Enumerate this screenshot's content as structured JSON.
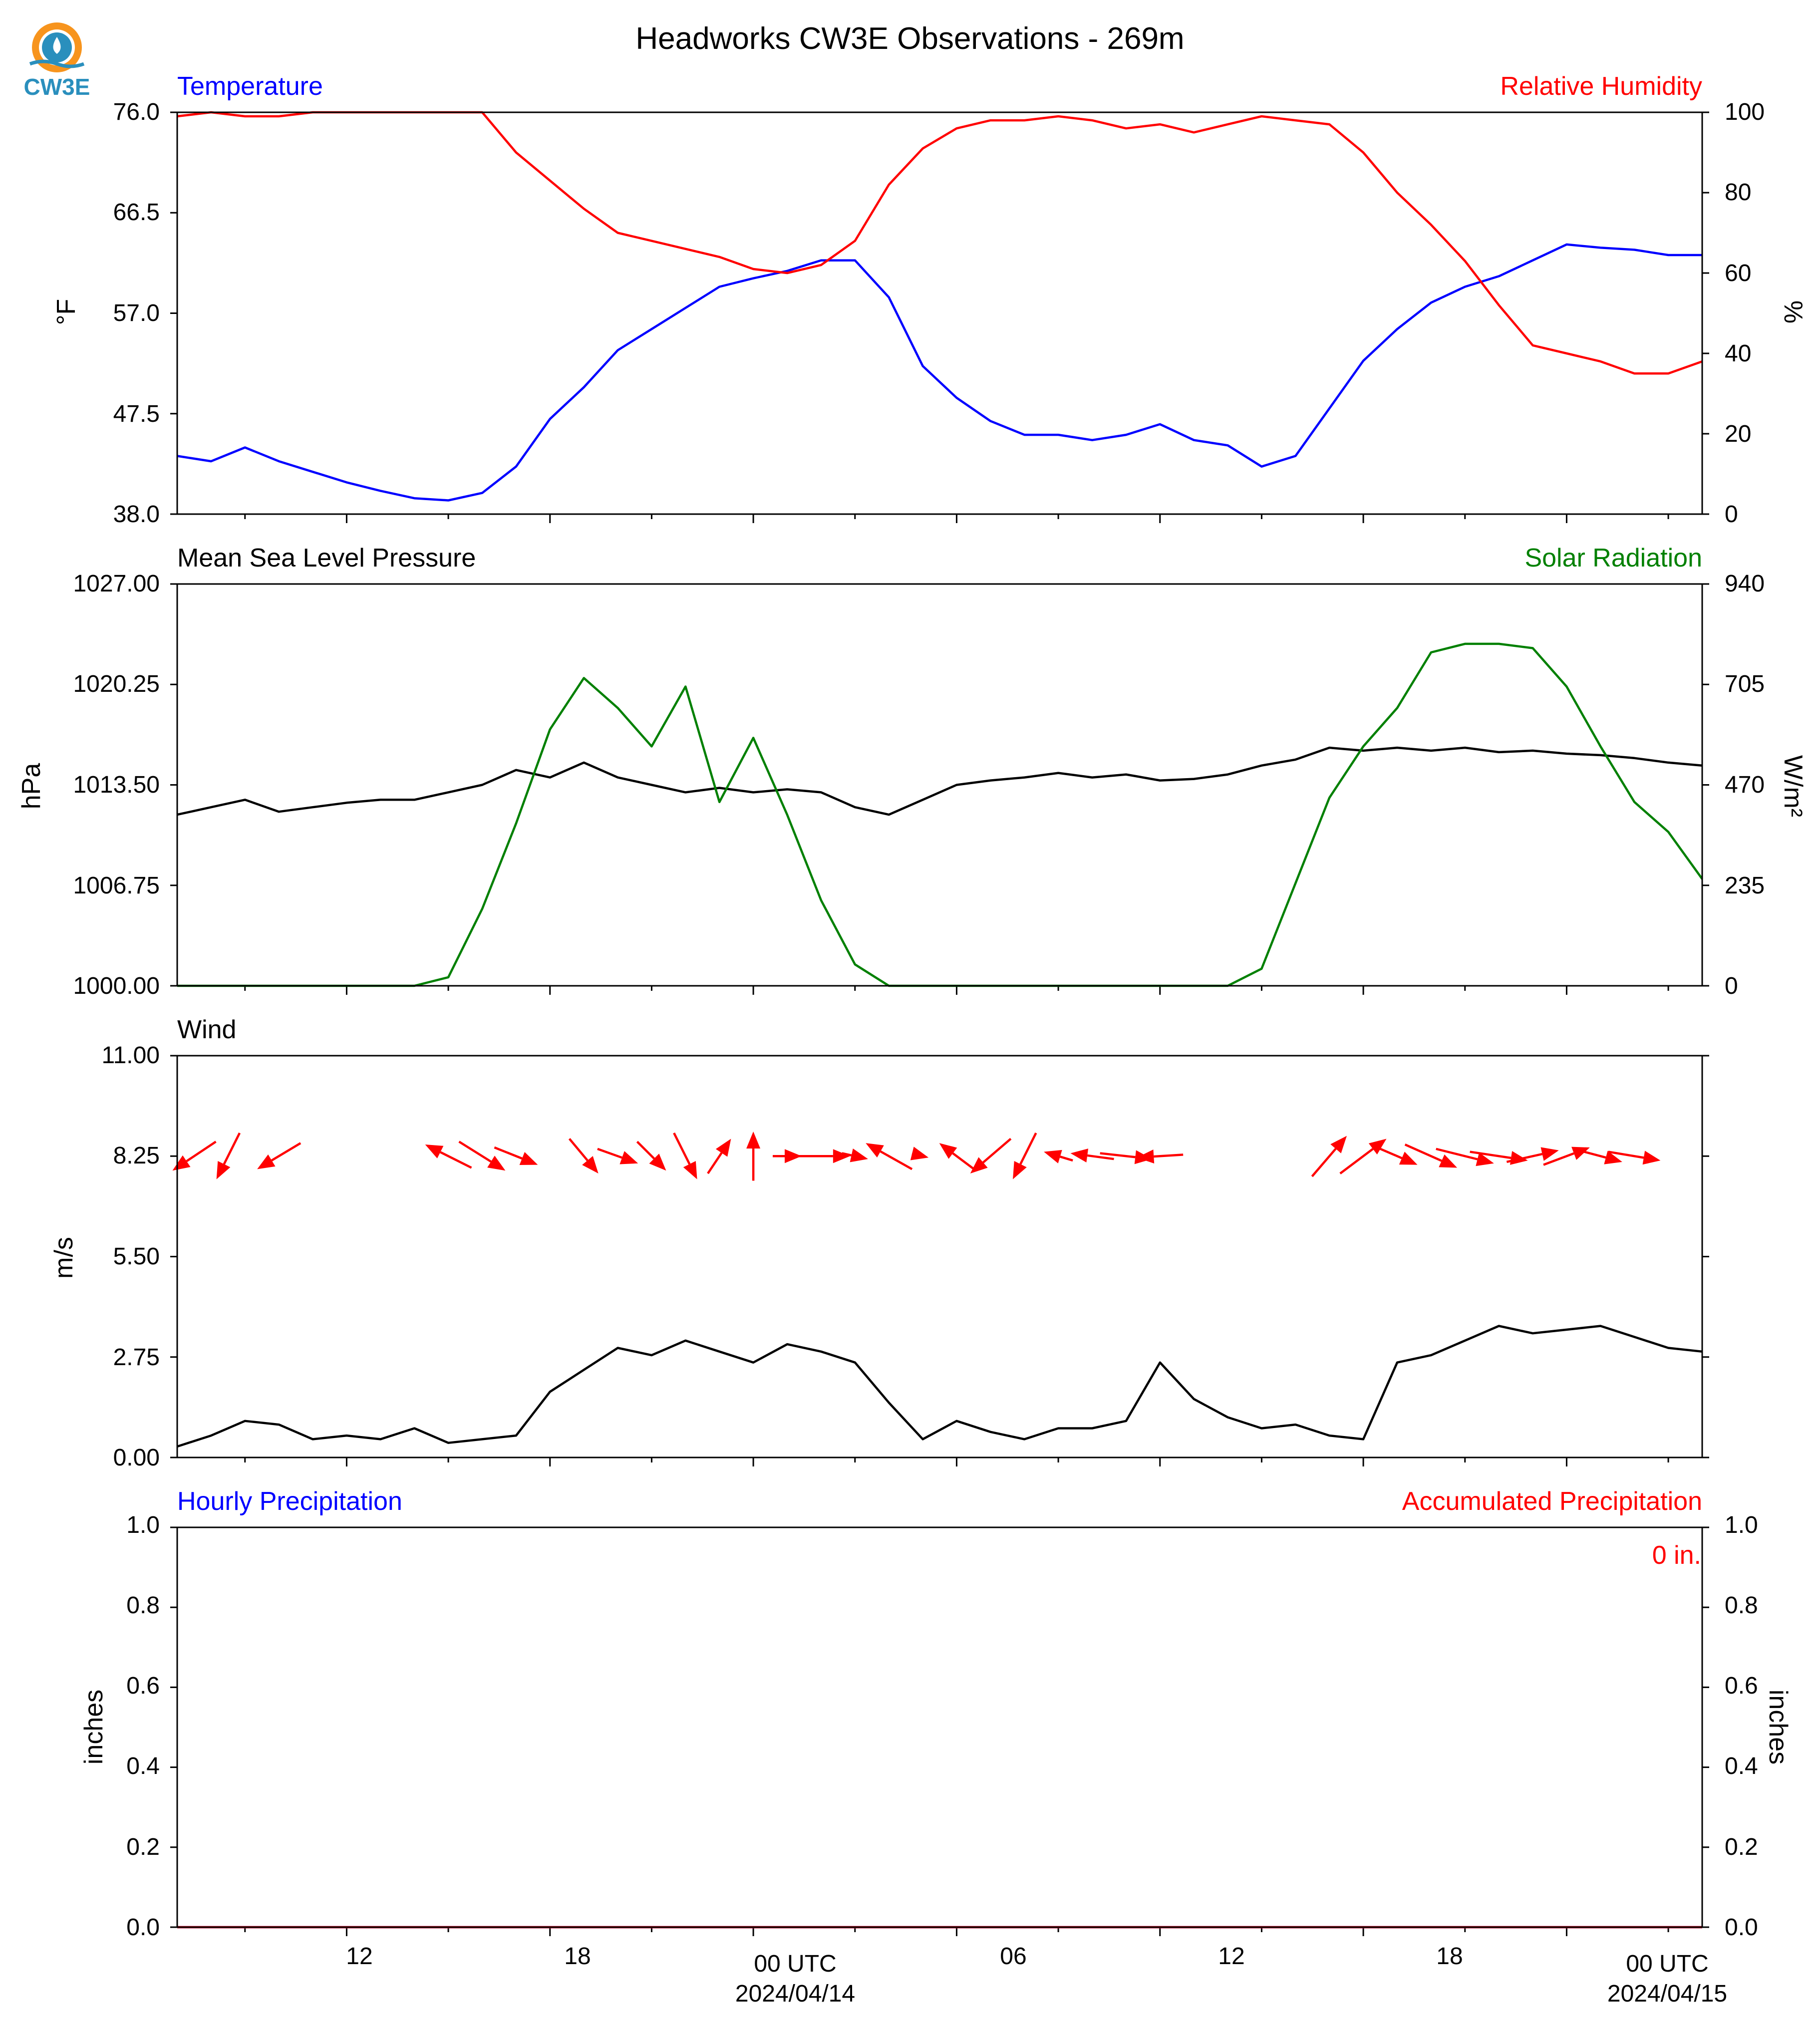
{
  "figure": {
    "title": "Headworks CW3E Observations - 269m",
    "logo_text": "CW3E",
    "time_axis": {
      "tick_labels": [
        "12",
        "18",
        "00 UTC",
        "06",
        "12",
        "18",
        "00 UTC"
      ],
      "date_labels": [
        "2024/04/14",
        "2024/04/15"
      ],
      "start": "2024-04-13T07:00Z",
      "end": "2024-04-15T04:00Z"
    }
  },
  "chart_data": [
    {
      "type": "line",
      "panel": "temperature-humidity",
      "title_left": "Temperature",
      "title_right": "Relative Humidity",
      "ylabel_left": "°F",
      "ylabel_right": "%",
      "ylim_left": [
        38.0,
        76.0
      ],
      "ylim_right": [
        0,
        100
      ],
      "yticks_left": [
        "38.0",
        "47.5",
        "57.0",
        "66.5",
        "76.0"
      ],
      "yticks_right": [
        "0",
        "20",
        "40",
        "60",
        "80",
        "100"
      ],
      "grid": false,
      "series": [
        {
          "axis": "left",
          "color": "#0000ff",
          "x": [
            "2024-04-13T07:00Z",
            "2024-04-13T08:00Z",
            "2024-04-13T09:00Z",
            "2024-04-13T10:00Z",
            "2024-04-13T11:00Z",
            "2024-04-13T12:00Z",
            "2024-04-13T13:00Z",
            "2024-04-13T14:00Z",
            "2024-04-13T15:00Z",
            "2024-04-13T16:00Z",
            "2024-04-13T17:00Z",
            "2024-04-13T18:00Z",
            "2024-04-13T19:00Z",
            "2024-04-13T20:00Z",
            "2024-04-13T21:00Z",
            "2024-04-13T22:00Z",
            "2024-04-13T23:00Z",
            "2024-04-14T00:00Z",
            "2024-04-14T01:00Z",
            "2024-04-14T02:00Z",
            "2024-04-14T03:00Z",
            "2024-04-14T04:00Z",
            "2024-04-14T05:00Z",
            "2024-04-14T06:00Z",
            "2024-04-14T07:00Z",
            "2024-04-14T08:00Z",
            "2024-04-14T09:00Z",
            "2024-04-14T10:00Z",
            "2024-04-14T11:00Z",
            "2024-04-14T12:00Z",
            "2024-04-14T13:00Z",
            "2024-04-14T14:00Z",
            "2024-04-14T15:00Z",
            "2024-04-14T16:00Z",
            "2024-04-14T17:00Z",
            "2024-04-14T18:00Z",
            "2024-04-14T19:00Z",
            "2024-04-14T20:00Z",
            "2024-04-14T21:00Z",
            "2024-04-14T22:00Z",
            "2024-04-14T23:00Z",
            "2024-04-15T00:00Z",
            "2024-04-15T01:00Z",
            "2024-04-15T02:00Z",
            "2024-04-15T03:00Z",
            "2024-04-15T04:00Z"
          ],
          "y": [
            43.5,
            43.0,
            44.3,
            43.0,
            42.0,
            41.0,
            40.2,
            39.5,
            39.3,
            40.0,
            42.5,
            47.0,
            50.0,
            53.5,
            55.5,
            57.5,
            59.5,
            60.3,
            61.0,
            62.0,
            62.0,
            58.5,
            52.0,
            49.0,
            46.8,
            45.5,
            45.5,
            45.0,
            45.5,
            46.5,
            45.0,
            44.5,
            42.5,
            43.5,
            48.0,
            52.5,
            55.5,
            58.0,
            59.5,
            60.5,
            62.0,
            63.5,
            63.2,
            63.0,
            62.5,
            62.5
          ]
        },
        {
          "axis": "right",
          "color": "#ff0000",
          "x": [
            "2024-04-13T07:00Z",
            "2024-04-13T08:00Z",
            "2024-04-13T09:00Z",
            "2024-04-13T10:00Z",
            "2024-04-13T11:00Z",
            "2024-04-13T12:00Z",
            "2024-04-13T13:00Z",
            "2024-04-13T14:00Z",
            "2024-04-13T15:00Z",
            "2024-04-13T16:00Z",
            "2024-04-13T17:00Z",
            "2024-04-13T18:00Z",
            "2024-04-13T19:00Z",
            "2024-04-13T20:00Z",
            "2024-04-13T21:00Z",
            "2024-04-13T22:00Z",
            "2024-04-13T23:00Z",
            "2024-04-14T00:00Z",
            "2024-04-14T01:00Z",
            "2024-04-14T02:00Z",
            "2024-04-14T03:00Z",
            "2024-04-14T04:00Z",
            "2024-04-14T05:00Z",
            "2024-04-14T06:00Z",
            "2024-04-14T07:00Z",
            "2024-04-14T08:00Z",
            "2024-04-14T09:00Z",
            "2024-04-14T10:00Z",
            "2024-04-14T11:00Z",
            "2024-04-14T12:00Z",
            "2024-04-14T13:00Z",
            "2024-04-14T14:00Z",
            "2024-04-14T15:00Z",
            "2024-04-14T16:00Z",
            "2024-04-14T17:00Z",
            "2024-04-14T18:00Z",
            "2024-04-14T19:00Z",
            "2024-04-14T20:00Z",
            "2024-04-14T21:00Z",
            "2024-04-14T22:00Z",
            "2024-04-14T23:00Z",
            "2024-04-15T00:00Z",
            "2024-04-15T01:00Z",
            "2024-04-15T02:00Z",
            "2024-04-15T03:00Z",
            "2024-04-15T04:00Z"
          ],
          "y": [
            99,
            100,
            99,
            99,
            100,
            100,
            100,
            100,
            100,
            100,
            90,
            83,
            76,
            70,
            68,
            66,
            64,
            61,
            60,
            62,
            68,
            82,
            91,
            96,
            98,
            98,
            99,
            98,
            96,
            97,
            95,
            97,
            99,
            98,
            97,
            90,
            80,
            72,
            63,
            52,
            42,
            40,
            38,
            35,
            35,
            38
          ]
        }
      ]
    },
    {
      "type": "line",
      "panel": "pressure-solar",
      "title_left": "Mean Sea Level Pressure",
      "title_right": "Solar Radiation",
      "ylabel_left": "hPa",
      "ylabel_right": "W/m²",
      "ylim_left": [
        1000.0,
        1027.0
      ],
      "ylim_right": [
        0,
        940
      ],
      "yticks_left": [
        "1000.00",
        "1006.75",
        "1013.50",
        "1020.25",
        "1027.00"
      ],
      "yticks_right": [
        "0",
        "235",
        "470",
        "705",
        "940"
      ],
      "grid": false,
      "series": [
        {
          "axis": "left",
          "color": "#000000",
          "x": [
            "2024-04-13T07:00Z",
            "2024-04-13T08:00Z",
            "2024-04-13T09:00Z",
            "2024-04-13T10:00Z",
            "2024-04-13T11:00Z",
            "2024-04-13T12:00Z",
            "2024-04-13T13:00Z",
            "2024-04-13T14:00Z",
            "2024-04-13T15:00Z",
            "2024-04-13T16:00Z",
            "2024-04-13T17:00Z",
            "2024-04-13T18:00Z",
            "2024-04-13T19:00Z",
            "2024-04-13T20:00Z",
            "2024-04-13T21:00Z",
            "2024-04-13T22:00Z",
            "2024-04-13T23:00Z",
            "2024-04-14T00:00Z",
            "2024-04-14T01:00Z",
            "2024-04-14T02:00Z",
            "2024-04-14T03:00Z",
            "2024-04-14T04:00Z",
            "2024-04-14T05:00Z",
            "2024-04-14T06:00Z",
            "2024-04-14T07:00Z",
            "2024-04-14T08:00Z",
            "2024-04-14T09:00Z",
            "2024-04-14T10:00Z",
            "2024-04-14T11:00Z",
            "2024-04-14T12:00Z",
            "2024-04-14T13:00Z",
            "2024-04-14T14:00Z",
            "2024-04-14T15:00Z",
            "2024-04-14T16:00Z",
            "2024-04-14T17:00Z",
            "2024-04-14T18:00Z",
            "2024-04-14T19:00Z",
            "2024-04-14T20:00Z",
            "2024-04-14T21:00Z",
            "2024-04-14T22:00Z",
            "2024-04-14T23:00Z",
            "2024-04-15T00:00Z",
            "2024-04-15T01:00Z",
            "2024-04-15T02:00Z",
            "2024-04-15T03:00Z",
            "2024-04-15T04:00Z"
          ],
          "y": [
            1011.5,
            1012.0,
            1012.5,
            1011.7,
            1012.0,
            1012.3,
            1012.5,
            1012.5,
            1013.0,
            1013.5,
            1014.5,
            1014.0,
            1015.0,
            1014.0,
            1013.5,
            1013.0,
            1013.3,
            1013.0,
            1013.2,
            1013.0,
            1012.0,
            1011.5,
            1012.5,
            1013.5,
            1013.8,
            1014.0,
            1014.3,
            1014.0,
            1014.2,
            1013.8,
            1013.9,
            1014.2,
            1014.8,
            1015.2,
            1016.0,
            1015.8,
            1016.0,
            1015.8,
            1016.0,
            1015.7,
            1015.8,
            1015.6,
            1015.5,
            1015.3,
            1015.0,
            1014.8
          ]
        },
        {
          "axis": "right",
          "color": "#008000",
          "x": [
            "2024-04-13T07:00Z",
            "2024-04-13T14:00Z",
            "2024-04-13T15:00Z",
            "2024-04-13T16:00Z",
            "2024-04-13T17:00Z",
            "2024-04-13T18:00Z",
            "2024-04-13T19:00Z",
            "2024-04-13T20:00Z",
            "2024-04-13T21:00Z",
            "2024-04-13T22:00Z",
            "2024-04-13T23:00Z",
            "2024-04-14T00:00Z",
            "2024-04-14T01:00Z",
            "2024-04-14T02:00Z",
            "2024-04-14T03:00Z",
            "2024-04-14T04:00Z",
            "2024-04-14T12:00Z",
            "2024-04-14T14:00Z",
            "2024-04-14T15:00Z",
            "2024-04-14T16:00Z",
            "2024-04-14T17:00Z",
            "2024-04-14T18:00Z",
            "2024-04-14T19:00Z",
            "2024-04-14T20:00Z",
            "2024-04-14T21:00Z",
            "2024-04-14T22:00Z",
            "2024-04-14T23:00Z",
            "2024-04-15T00:00Z",
            "2024-04-15T01:00Z",
            "2024-04-15T02:00Z",
            "2024-04-15T03:00Z",
            "2024-04-15T04:00Z"
          ],
          "y": [
            0,
            0,
            20,
            180,
            380,
            600,
            720,
            650,
            560,
            700,
            430,
            580,
            400,
            200,
            50,
            0,
            0,
            0,
            40,
            240,
            440,
            560,
            650,
            780,
            800,
            800,
            790,
            700,
            560,
            430,
            360,
            250
          ]
        }
      ]
    },
    {
      "type": "line",
      "panel": "wind",
      "title_left": "Wind",
      "ylabel_left": "m/s",
      "ylim_left": [
        0.0,
        11.0
      ],
      "yticks_left": [
        "0.00",
        "2.75",
        "5.50",
        "8.25",
        "11.00"
      ],
      "grid": false,
      "series": [
        {
          "axis": "left",
          "color": "#000000",
          "x": [
            "2024-04-13T07:00Z",
            "2024-04-13T08:00Z",
            "2024-04-13T09:00Z",
            "2024-04-13T10:00Z",
            "2024-04-13T11:00Z",
            "2024-04-13T12:00Z",
            "2024-04-13T13:00Z",
            "2024-04-13T14:00Z",
            "2024-04-13T15:00Z",
            "2024-04-13T16:00Z",
            "2024-04-13T17:00Z",
            "2024-04-13T18:00Z",
            "2024-04-13T19:00Z",
            "2024-04-13T20:00Z",
            "2024-04-13T21:00Z",
            "2024-04-13T22:00Z",
            "2024-04-13T23:00Z",
            "2024-04-14T00:00Z",
            "2024-04-14T01:00Z",
            "2024-04-14T02:00Z",
            "2024-04-14T03:00Z",
            "2024-04-14T04:00Z",
            "2024-04-14T05:00Z",
            "2024-04-14T06:00Z",
            "2024-04-14T07:00Z",
            "2024-04-14T08:00Z",
            "2024-04-14T09:00Z",
            "2024-04-14T10:00Z",
            "2024-04-14T11:00Z",
            "2024-04-14T12:00Z",
            "2024-04-14T13:00Z",
            "2024-04-14T14:00Z",
            "2024-04-14T15:00Z",
            "2024-04-14T16:00Z",
            "2024-04-14T17:00Z",
            "2024-04-14T18:00Z",
            "2024-04-14T19:00Z",
            "2024-04-14T20:00Z",
            "2024-04-14T21:00Z",
            "2024-04-14T22:00Z",
            "2024-04-14T23:00Z",
            "2024-04-15T00:00Z",
            "2024-04-15T01:00Z",
            "2024-04-15T02:00Z",
            "2024-04-15T03:00Z",
            "2024-04-15T04:00Z"
          ],
          "y": [
            0.3,
            0.6,
            1.0,
            0.9,
            0.5,
            0.6,
            0.5,
            0.8,
            0.4,
            0.5,
            0.6,
            1.8,
            2.4,
            3.0,
            2.8,
            3.2,
            2.9,
            2.6,
            3.1,
            2.9,
            2.6,
            1.5,
            0.5,
            1.0,
            0.7,
            0.5,
            0.8,
            0.8,
            1.0,
            2.6,
            1.6,
            1.1,
            0.8,
            0.9,
            0.6,
            0.5,
            2.6,
            2.8,
            3.2,
            3.6,
            3.4,
            3.5,
            3.6,
            3.3,
            3.0,
            2.9
          ]
        }
      ],
      "arrows": {
        "color": "#ff0000",
        "x": [
          "2024-04-13T07:30Z",
          "2024-04-13T08:30Z",
          "2024-04-13T10:00Z",
          "2024-04-13T15:00Z",
          "2024-04-13T16:00Z",
          "2024-04-13T17:00Z",
          "2024-04-13T19:00Z",
          "2024-04-13T20:00Z",
          "2024-04-13T21:00Z",
          "2024-04-13T22:00Z",
          "2024-04-13T23:00Z",
          "2024-04-14T00:00Z",
          "2024-04-14T01:00Z",
          "2024-04-14T02:00Z",
          "2024-04-14T03:00Z",
          "2024-04-14T04:00Z",
          "2024-04-14T05:00Z",
          "2024-04-14T06:00Z",
          "2024-04-14T07:00Z",
          "2024-04-14T08:00Z",
          "2024-04-14T09:00Z",
          "2024-04-14T10:00Z",
          "2024-04-14T11:00Z",
          "2024-04-14T12:00Z",
          "2024-04-14T17:00Z",
          "2024-04-14T18:00Z",
          "2024-04-14T19:00Z",
          "2024-04-14T20:00Z",
          "2024-04-14T21:00Z",
          "2024-04-14T22:00Z",
          "2024-04-14T23:00Z",
          "2024-04-15T00:00Z",
          "2024-04-15T01:00Z",
          "2024-04-15T02:00Z"
        ],
        "u": [
          -1.5,
          -0.8,
          -1.5,
          -1.6,
          1.6,
          1.5,
          1.0,
          1.4,
          1.0,
          0.8,
          0.8,
          0.0,
          1.0,
          2.0,
          0.9,
          -1.6,
          0.4,
          -1.2,
          -1.4,
          -0.8,
          -1.0,
          -1.5,
          1.8,
          -1.6,
          1.2,
          1.6,
          1.4,
          1.8,
          2.0,
          2.0,
          1.8,
          1.6,
          1.5,
          1.8
        ],
        "v": [
          -1.0,
          -1.6,
          -0.9,
          0.8,
          -1.0,
          -0.6,
          -1.2,
          -0.5,
          -1.0,
          -1.6,
          1.2,
          1.7,
          0.0,
          0.0,
          -0.2,
          0.9,
          -0.1,
          0.9,
          -1.2,
          -1.6,
          0.3,
          0.2,
          -0.2,
          -0.1,
          1.4,
          1.2,
          -0.6,
          -0.8,
          -0.5,
          -0.3,
          0.4,
          0.6,
          -0.4,
          -0.3
        ]
      }
    },
    {
      "type": "line",
      "panel": "precipitation",
      "title_left": "Hourly Precipitation",
      "title_right": "Accumulated Precipitation",
      "ylabel_left": "inches",
      "ylabel_right": "inches",
      "ylim_left": [
        0.0,
        1.0
      ],
      "ylim_right": [
        0.0,
        1.0
      ],
      "yticks_left": [
        "0.0",
        "0.2",
        "0.4",
        "0.6",
        "0.8",
        "1.0"
      ],
      "yticks_right": [
        "0.0",
        "0.2",
        "0.4",
        "0.6",
        "0.8",
        "1.0"
      ],
      "annotation": "0 in.",
      "grid": false,
      "series": [
        {
          "axis": "left",
          "color": "#0000ff",
          "x": [
            "2024-04-13T07:00Z",
            "2024-04-15T04:00Z"
          ],
          "y": [
            0,
            0
          ]
        },
        {
          "axis": "right",
          "color": "#ff0000",
          "x": [
            "2024-04-13T07:00Z",
            "2024-04-15T04:00Z"
          ],
          "y": [
            0,
            0
          ]
        }
      ]
    }
  ]
}
